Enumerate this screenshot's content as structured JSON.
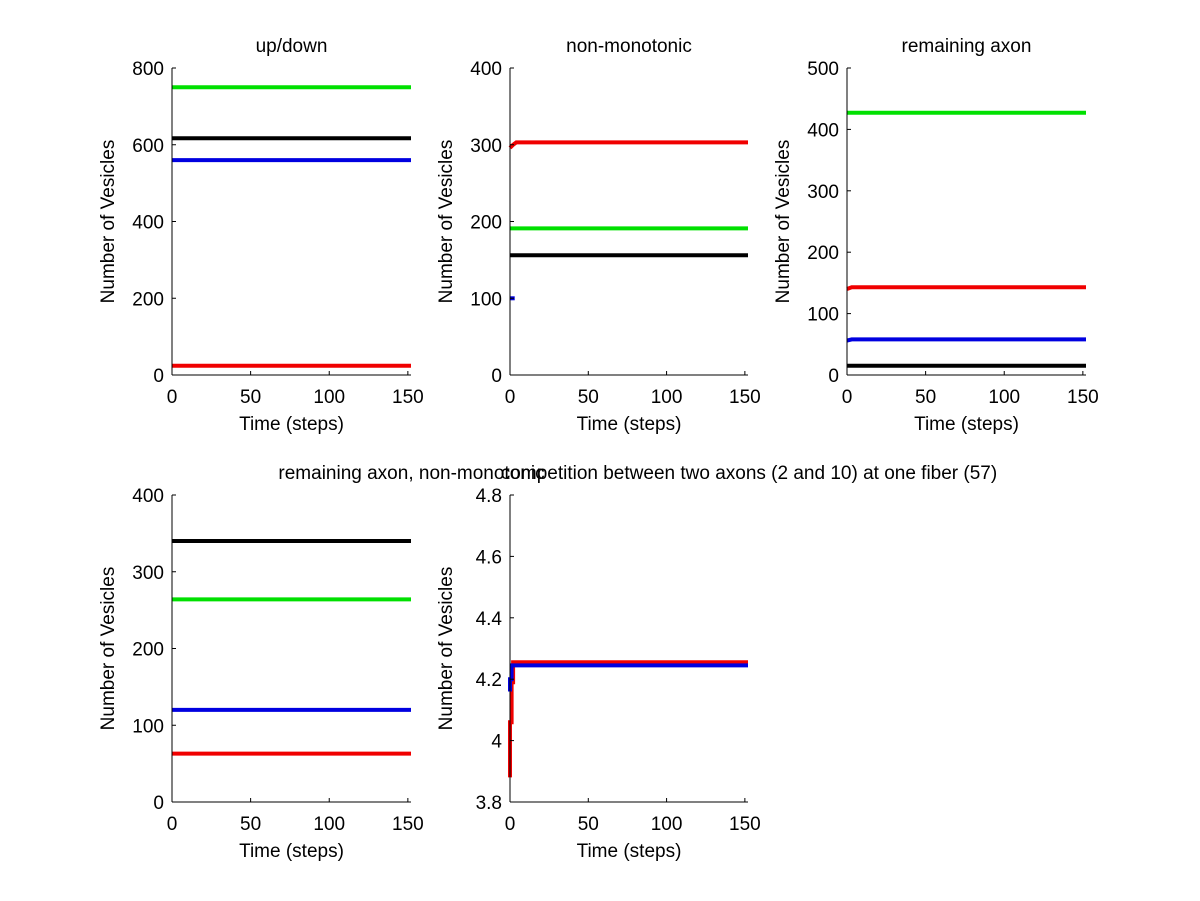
{
  "colors": {
    "red": "#f00000",
    "green": "#00e000",
    "blue": "#0000e0",
    "black": "#000000"
  },
  "chart_data": [
    {
      "type": "line",
      "title": "up/down",
      "xlabel": "Time (steps)",
      "ylabel": "Number of Vesicles",
      "xlim": [
        0,
        152
      ],
      "ylim": [
        0,
        800
      ],
      "xticks": [
        0,
        50,
        100,
        150
      ],
      "xtick_labels": [
        "0",
        "50",
        "100",
        "150"
      ],
      "yticks": [
        0,
        200,
        400,
        600,
        800
      ],
      "ytick_labels": [
        "0",
        "200",
        "400",
        "600",
        "800"
      ],
      "series": [
        {
          "name": "green",
          "color": "green",
          "x": [
            0,
            152
          ],
          "y": [
            750,
            750
          ]
        },
        {
          "name": "black",
          "color": "black",
          "x": [
            0,
            152
          ],
          "y": [
            617,
            617
          ]
        },
        {
          "name": "blue",
          "color": "blue",
          "x": [
            0,
            152
          ],
          "y": [
            560,
            560
          ]
        },
        {
          "name": "red",
          "color": "red",
          "x": [
            0,
            152
          ],
          "y": [
            24,
            24
          ]
        }
      ]
    },
    {
      "type": "line",
      "title": "non-monotonic",
      "xlabel": "Time (steps)",
      "ylabel": "Number of Vesicles",
      "xlim": [
        0,
        152
      ],
      "ylim": [
        0,
        400
      ],
      "xticks": [
        0,
        50,
        100,
        150
      ],
      "xtick_labels": [
        "0",
        "50",
        "100",
        "150"
      ],
      "yticks": [
        0,
        100,
        200,
        300,
        400
      ],
      "ytick_labels": [
        "0",
        "100",
        "200",
        "300",
        "400"
      ],
      "series": [
        {
          "name": "red",
          "color": "red",
          "x": [
            0,
            2,
            4,
            152
          ],
          "y": [
            296,
            300,
            303,
            303
          ]
        },
        {
          "name": "green",
          "color": "green",
          "x": [
            0,
            152
          ],
          "y": [
            191,
            191
          ]
        },
        {
          "name": "black",
          "color": "black",
          "x": [
            0,
            152
          ],
          "y": [
            156,
            156
          ]
        },
        {
          "name": "blue",
          "color": "blue",
          "x": [
            0,
            3
          ],
          "y": [
            100,
            100
          ]
        }
      ]
    },
    {
      "type": "line",
      "title": "remaining axon",
      "xlabel": "Time (steps)",
      "ylabel": "Number of Vesicles",
      "xlim": [
        0,
        152
      ],
      "ylim": [
        0,
        500
      ],
      "xticks": [
        0,
        50,
        100,
        150
      ],
      "xtick_labels": [
        "0",
        "50",
        "100",
        "150"
      ],
      "yticks": [
        0,
        100,
        200,
        300,
        400,
        500
      ],
      "ytick_labels": [
        "0",
        "100",
        "200",
        "300",
        "400",
        "500"
      ],
      "series": [
        {
          "name": "green",
          "color": "green",
          "x": [
            0,
            152
          ],
          "y": [
            427,
            427
          ]
        },
        {
          "name": "red",
          "color": "red",
          "x": [
            0,
            3,
            152
          ],
          "y": [
            140,
            143,
            143
          ]
        },
        {
          "name": "blue",
          "color": "blue",
          "x": [
            0,
            3,
            152
          ],
          "y": [
            56,
            58,
            58
          ]
        },
        {
          "name": "black",
          "color": "black",
          "x": [
            0,
            152
          ],
          "y": [
            15,
            15
          ]
        }
      ]
    },
    {
      "type": "line",
      "title": "remaining axon, non-monotonic",
      "xlabel": "Time (steps)",
      "ylabel": "Number of Vesicles",
      "xlim": [
        0,
        152
      ],
      "ylim": [
        0,
        400
      ],
      "xticks": [
        0,
        50,
        100,
        150
      ],
      "xtick_labels": [
        "0",
        "50",
        "100",
        "150"
      ],
      "yticks": [
        0,
        100,
        200,
        300,
        400
      ],
      "ytick_labels": [
        "0",
        "100",
        "200",
        "300",
        "400"
      ],
      "series": [
        {
          "name": "black",
          "color": "black",
          "x": [
            0,
            152
          ],
          "y": [
            340,
            340
          ]
        },
        {
          "name": "green",
          "color": "green",
          "x": [
            0,
            152
          ],
          "y": [
            264,
            264
          ]
        },
        {
          "name": "blue",
          "color": "blue",
          "x": [
            0,
            152
          ],
          "y": [
            120,
            120
          ]
        },
        {
          "name": "red",
          "color": "red",
          "x": [
            0,
            152
          ],
          "y": [
            63,
            63
          ]
        }
      ]
    },
    {
      "type": "line",
      "title": "competition between two axons (2 and 10) at one fiber (57)",
      "xlabel": "Time (steps)",
      "ylabel": "Number of Vesicles",
      "xlim": [
        0,
        152
      ],
      "ylim": [
        3.8,
        4.8
      ],
      "xticks": [
        0,
        50,
        100,
        150
      ],
      "xtick_labels": [
        "0",
        "50",
        "100",
        "150"
      ],
      "yticks": [
        3.8,
        4.0,
        4.2,
        4.4,
        4.6,
        4.8
      ],
      "ytick_labels": [
        "3.8",
        "4",
        "4.2",
        "4.4",
        "4.6",
        "4.8"
      ],
      "series": [
        {
          "name": "red",
          "color": "red",
          "x": [
            0,
            0,
            1,
            1,
            2,
            2,
            152
          ],
          "y": [
            3.88,
            4.06,
            4.06,
            4.19,
            4.19,
            4.255,
            4.255
          ]
        },
        {
          "name": "blue",
          "color": "blue",
          "x": [
            0,
            0,
            1,
            1,
            152
          ],
          "y": [
            4.16,
            4.2,
            4.2,
            4.245,
            4.245
          ]
        }
      ]
    }
  ]
}
